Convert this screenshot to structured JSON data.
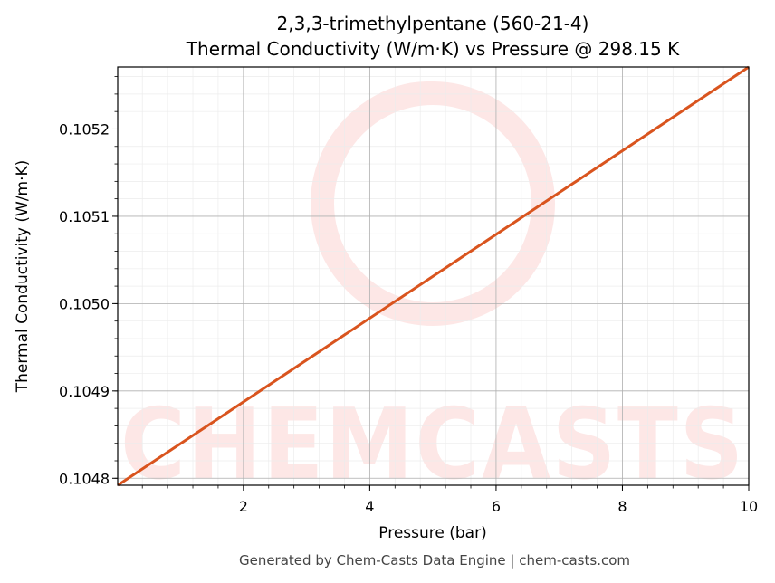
{
  "chart_data": {
    "type": "line",
    "title": "2,3,3-trimethylpentane (560-21-4)",
    "subtitle": "Thermal Conductivity (W/m·K) vs Pressure @ 298.15 K",
    "xlabel": "Pressure (bar)",
    "ylabel": "Thermal Conductivity (W/m·K)",
    "xlim": [
      0.01,
      10
    ],
    "ylim": [
      0.104792,
      0.105271
    ],
    "x_ticks": [
      2,
      4,
      6,
      8,
      10
    ],
    "x_tick_labels": [
      "2",
      "4",
      "6",
      "8",
      "10"
    ],
    "y_ticks": [
      0.1048,
      0.1049,
      0.105,
      0.1051,
      0.1052
    ],
    "y_tick_labels": [
      "0.1048",
      "0.1049",
      "0.1050",
      "0.1051",
      "0.1052"
    ],
    "grid": true,
    "series": [
      {
        "x": [
          0.01,
          10
        ],
        "y": [
          0.104792,
          0.105271
        ],
        "color": "#d9541e"
      }
    ]
  },
  "watermark": "CHEMCASTS",
  "footer": "Generated by Chem-Casts Data Engine | chem-casts.com"
}
